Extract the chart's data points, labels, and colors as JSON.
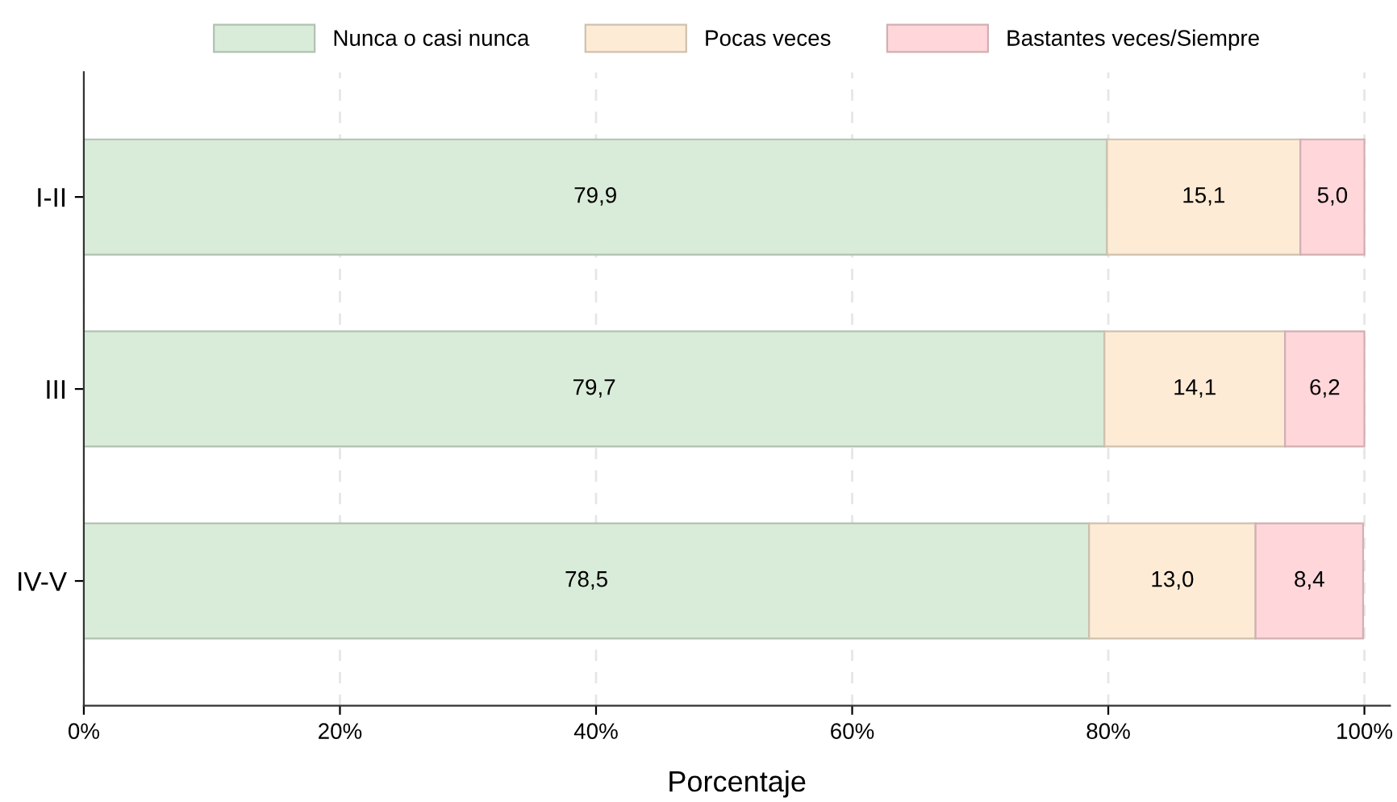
{
  "chart_data": {
    "type": "bar",
    "orientation": "horizontal",
    "stacked": true,
    "xlabel": "Porcentaje",
    "categories": [
      "I-II",
      "III",
      "IV-V"
    ],
    "series": [
      {
        "name": "Nunca o casi nunca",
        "color": "#d9ebd9",
        "values": [
          79.9,
          79.7,
          78.5
        ],
        "value_labels": [
          "79,9",
          "79,7",
          "78,5"
        ]
      },
      {
        "name": "Pocas veces",
        "color": "#fdebd5",
        "values": [
          15.1,
          14.1,
          13.0
        ],
        "value_labels": [
          "15,1",
          "14,1",
          "13,0"
        ]
      },
      {
        "name": "Bastantes veces/Siempre",
        "color": "#ffd6da",
        "values": [
          5.0,
          6.2,
          8.4
        ],
        "value_labels": [
          "5,0",
          "6,2",
          "8,4"
        ]
      }
    ],
    "xlim": [
      0,
      102
    ],
    "xticks": [
      {
        "value": 0,
        "label": "0%"
      },
      {
        "value": 20,
        "label": "20%"
      },
      {
        "value": 40,
        "label": "40%"
      },
      {
        "value": 60,
        "label": "60%"
      },
      {
        "value": 80,
        "label": "80%"
      },
      {
        "value": 100,
        "label": "100%"
      }
    ],
    "grid": "x",
    "legend": "top"
  }
}
